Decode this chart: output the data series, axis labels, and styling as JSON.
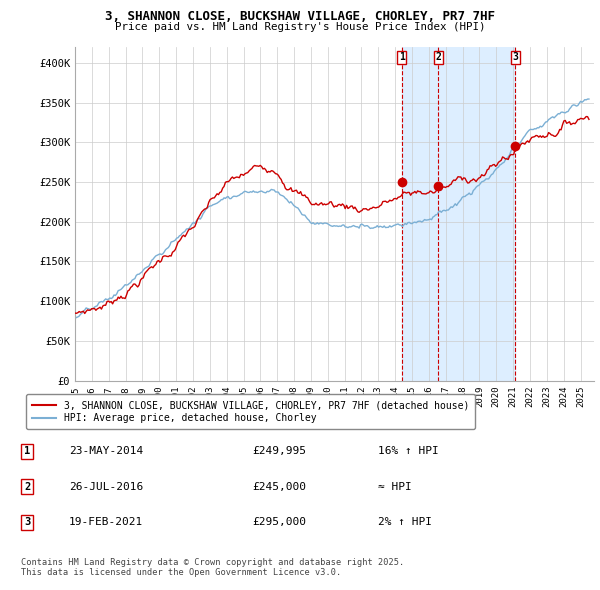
{
  "title_line1": "3, SHANNON CLOSE, BUCKSHAW VILLAGE, CHORLEY, PR7 7HF",
  "title_line2": "Price paid vs. HM Land Registry's House Price Index (HPI)",
  "ylim": [
    0,
    420000
  ],
  "yticks": [
    0,
    50000,
    100000,
    150000,
    200000,
    250000,
    300000,
    350000,
    400000
  ],
  "ytick_labels": [
    "£0",
    "£50K",
    "£100K",
    "£150K",
    "£200K",
    "£250K",
    "£300K",
    "£350K",
    "£400K"
  ],
  "red_line_color": "#cc0000",
  "blue_line_color": "#7bafd4",
  "shade_color": "#ddeeff",
  "marker_color": "#cc0000",
  "sale_points": [
    {
      "date_num": 2014.39,
      "price": 249995,
      "label": "1"
    },
    {
      "date_num": 2016.57,
      "price": 245000,
      "label": "2"
    },
    {
      "date_num": 2021.13,
      "price": 295000,
      "label": "3"
    }
  ],
  "vline_color": "#cc0000",
  "legend_entry1": "3, SHANNON CLOSE, BUCKSHAW VILLAGE, CHORLEY, PR7 7HF (detached house)",
  "legend_entry2": "HPI: Average price, detached house, Chorley",
  "table_data": [
    {
      "num": "1",
      "date": "23-MAY-2014",
      "price": "£249,995",
      "change": "16% ↑ HPI"
    },
    {
      "num": "2",
      "date": "26-JUL-2016",
      "price": "£245,000",
      "change": "≈ HPI"
    },
    {
      "num": "3",
      "date": "19-FEB-2021",
      "price": "£295,000",
      "change": "2% ↑ HPI"
    }
  ],
  "footnote": "Contains HM Land Registry data © Crown copyright and database right 2025.\nThis data is licensed under the Open Government Licence v3.0.",
  "bg_color": "#ffffff",
  "grid_color": "#cccccc"
}
